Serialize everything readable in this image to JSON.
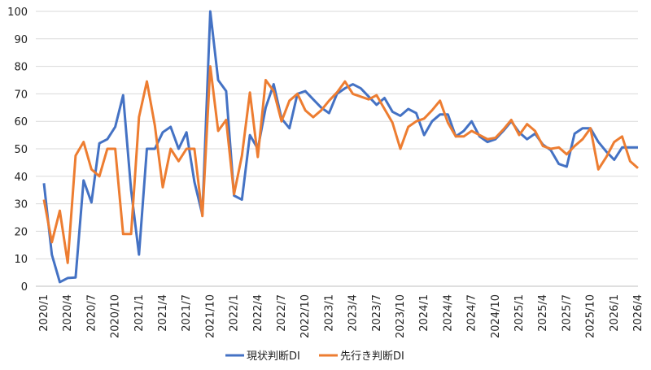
{
  "chart_data": {
    "type": "line",
    "title": "",
    "xlabel": "",
    "ylabel": "",
    "ylim": [
      0,
      100
    ],
    "yticks": [
      0,
      10,
      20,
      30,
      40,
      50,
      60,
      70,
      80,
      90,
      100
    ],
    "grid": "horizontal",
    "legend_position": "bottom",
    "x": [
      "2020/1",
      "2020/2",
      "2020/3",
      "2020/4",
      "2020/5",
      "2020/6",
      "2020/7",
      "2020/8",
      "2020/9",
      "2020/10",
      "2020/11",
      "2020/12",
      "2021/1",
      "2021/2",
      "2021/3",
      "2021/4",
      "2021/5",
      "2021/6",
      "2021/7",
      "2021/8",
      "2021/9",
      "2021/10",
      "2021/11",
      "2021/12",
      "2022/1",
      "2022/2",
      "2022/3",
      "2022/4",
      "2022/5",
      "2022/6",
      "2022/7",
      "2022/8",
      "2022/9",
      "2022/10",
      "2022/11",
      "2022/12",
      "2023/1",
      "2023/2",
      "2023/3",
      "2023/4",
      "2023/5",
      "2023/6",
      "2023/7",
      "2023/8",
      "2023/9",
      "2023/10",
      "2023/11",
      "2023/12",
      "2024/1",
      "2024/2",
      "2024/3",
      "2024/4",
      "2024/5",
      "2024/6",
      "2024/7",
      "2024/8",
      "2024/9",
      "2024/10",
      "2024/11",
      "2024/12",
      "2025/1",
      "2025/2",
      "2025/3",
      "2025/4",
      "2025/5",
      "2025/6",
      "2025/7",
      "2025/8",
      "2025/9",
      "2025/10",
      "2025/11",
      "2025/12",
      "2026/1",
      "2026/2",
      "2026/3",
      "2026/4"
    ],
    "xtick_labels": [
      "2020/1",
      "2020/4",
      "2020/7",
      "2020/10",
      "2021/1",
      "2021/4",
      "2021/7",
      "2021/10",
      "2022/1",
      "2022/4",
      "2022/7",
      "2022/10",
      "2023/1",
      "2023/4",
      "2023/7",
      "2023/10",
      "2024/1",
      "2024/4",
      "2024/7",
      "2024/10",
      "2025/1",
      "2025/4",
      "2025/7",
      "2025/10",
      "2026/1",
      "2026/4"
    ],
    "series": [
      {
        "name": "現状判断DI",
        "color": "#4472C4",
        "values": [
          37.5,
          11.5,
          1.5,
          3,
          3.2,
          38.5,
          30.5,
          52,
          53.5,
          58,
          69.5,
          35,
          11.5,
          50,
          50,
          56,
          58,
          50,
          56,
          38,
          26,
          100,
          75,
          71,
          33,
          31.5,
          55,
          50,
          65,
          73.5,
          61,
          57.5,
          70,
          71,
          68,
          65,
          63,
          70,
          72,
          73.5,
          72,
          69,
          66,
          68.5,
          63.5,
          62,
          64.5,
          63,
          55,
          60,
          62.5,
          62.5,
          54.5,
          56.5,
          60,
          54.5,
          52.5,
          53.5,
          56.5,
          60,
          56,
          53.5,
          55.5,
          51.5,
          49.5,
          44.5,
          43.5,
          55.5,
          57.5,
          57.5,
          52.5,
          49,
          46,
          50.5,
          50.5,
          50.5
        ]
      },
      {
        "name": "先行き判断DI",
        "color": "#ED7D31",
        "values": [
          31.5,
          16,
          27.5,
          8.5,
          47.5,
          52.5,
          42.5,
          40,
          50,
          50,
          19,
          19,
          61.5,
          74.5,
          58.5,
          36,
          50,
          45.5,
          50,
          50,
          25.5,
          80,
          56.5,
          60.5,
          33.5,
          47.5,
          70.5,
          47,
          75,
          71,
          60,
          67.5,
          70,
          64,
          61.5,
          64,
          67.5,
          70.5,
          74.5,
          70,
          69,
          68,
          69.5,
          64.5,
          59.5,
          50,
          58,
          60,
          61,
          64,
          67.5,
          59.5,
          54.5,
          54.5,
          56.5,
          55,
          53.5,
          54,
          57,
          60.5,
          55,
          59,
          56.5,
          51,
          50,
          50.5,
          48,
          51,
          53.5,
          57.5,
          42.5,
          47,
          52.5,
          54.5,
          45.5,
          43
        ]
      }
    ]
  }
}
